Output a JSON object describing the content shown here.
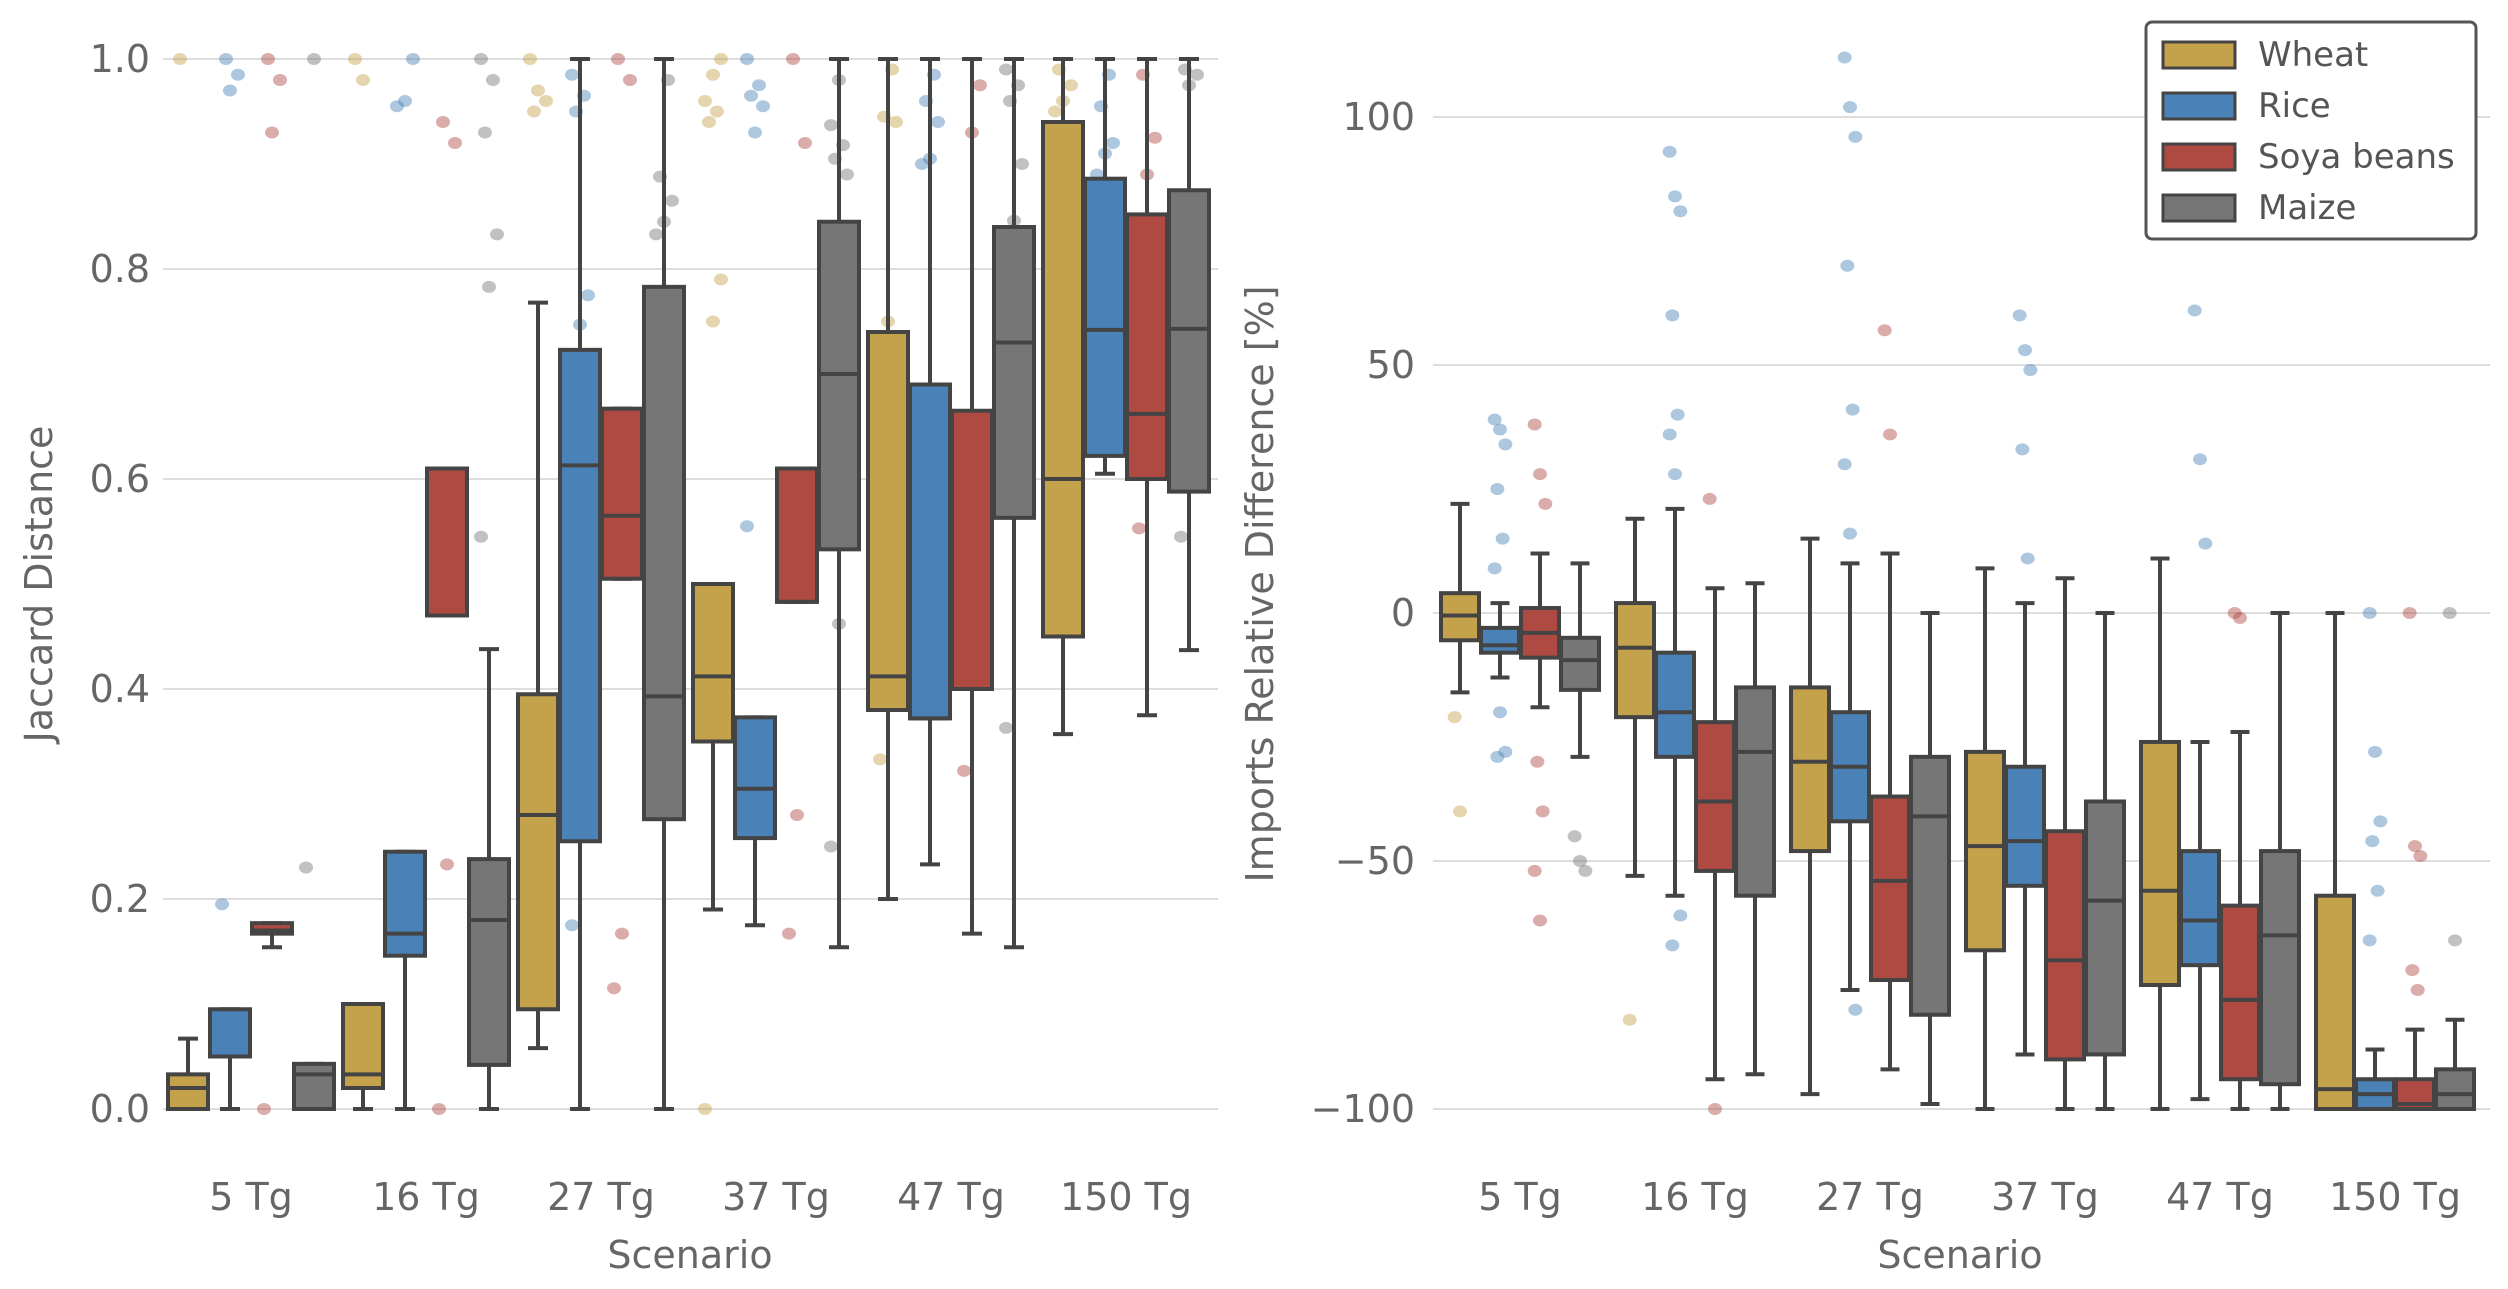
{
  "chart_data": [
    {
      "type": "box",
      "panel": "left",
      "title": "",
      "xlabel": "Scenario",
      "ylabel": "Jaccard Distance",
      "ylim": [
        0.0,
        1.0
      ],
      "yticks": [
        0.0,
        0.2,
        0.4,
        0.6,
        0.8,
        1.0
      ],
      "ytick_labels": [
        "0.0",
        "0.2",
        "0.4",
        "0.6",
        "0.8",
        "1.0"
      ],
      "grid": true,
      "categories": [
        "5 Tg",
        "16 Tg",
        "27 Tg",
        "37 Tg",
        "47 Tg",
        "150 Tg"
      ],
      "series": [
        {
          "name": "Wheat",
          "color": "#C4A24C",
          "boxes": [
            {
              "whislo": 0.0,
              "q1": 0.0,
              "med": 0.02,
              "q3": 0.033,
              "whishi": 0.067,
              "fliers": [
                1.0
              ]
            },
            {
              "whislo": 0.0,
              "q1": 0.02,
              "med": 0.033,
              "q3": 0.1,
              "whishi": 0.1,
              "fliers": [
                1.0,
                0.98
              ]
            },
            {
              "whislo": 0.058,
              "q1": 0.095,
              "med": 0.28,
              "q3": 0.395,
              "whishi": 0.768,
              "fliers": [
                1.0,
                0.97,
                0.96,
                0.95
              ]
            },
            {
              "whislo": 0.19,
              "q1": 0.35,
              "med": 0.412,
              "q3": 0.5,
              "whishi": 0.5,
              "fliers": [
                0.0,
                0.75,
                0.79,
                0.94,
                0.95,
                0.96,
                0.985,
                1.0
              ]
            },
            {
              "whislo": 0.2,
              "q1": 0.38,
              "med": 0.412,
              "q3": 0.74,
              "whishi": 1.0,
              "fliers": [
                0.333,
                0.75,
                0.94,
                0.945,
                0.99
              ]
            },
            {
              "whislo": 0.357,
              "q1": 0.45,
              "med": 0.6,
              "q3": 0.94,
              "whishi": 1.0,
              "fliers": [
                0.95,
                0.96,
                0.975,
                0.99
              ]
            }
          ]
        },
        {
          "name": "Rice",
          "color": "#4A82B8",
          "boxes": [
            {
              "whislo": 0.0,
              "q1": 0.05,
              "med": 0.05,
              "q3": 0.095,
              "whishi": 0.095,
              "fliers": [
                0.195,
                0.97,
                0.985,
                1.0
              ]
            },
            {
              "whislo": 0.0,
              "q1": 0.146,
              "med": 0.167,
              "q3": 0.245,
              "whishi": 0.245,
              "fliers": [
                0.955,
                0.96,
                1.0
              ]
            },
            {
              "whislo": 0.0,
              "q1": 0.255,
              "med": 0.613,
              "q3": 0.723,
              "whishi": 1.0,
              "fliers": [
                0.175,
                0.747,
                0.775,
                0.95,
                0.965,
                0.985
              ]
            },
            {
              "whislo": 0.175,
              "q1": 0.258,
              "med": 0.305,
              "q3": 0.373,
              "whishi": 0.373,
              "fliers": [
                0.555,
                0.93,
                0.955,
                0.965,
                0.975,
                1.0
              ]
            },
            {
              "whislo": 0.233,
              "q1": 0.372,
              "med": 0.372,
              "q3": 0.69,
              "whishi": 1.0,
              "fliers": [
                0.9,
                0.905,
                0.94,
                0.96,
                0.985
              ]
            },
            {
              "whislo": 0.605,
              "q1": 0.622,
              "med": 0.742,
              "q3": 0.886,
              "whishi": 1.0,
              "fliers": [
                0.89,
                0.91,
                0.92,
                0.955,
                0.985
              ]
            }
          ]
        },
        {
          "name": "Soya beans",
          "color": "#AE4A42",
          "boxes": [
            {
              "whislo": 0.154,
              "q1": 0.167,
              "med": 0.17,
              "q3": 0.177,
              "whishi": 0.177,
              "fliers": [
                0.0,
                0.93,
                0.98,
                1.0
              ]
            },
            {
              "whislo": 0.47,
              "q1": 0.47,
              "med": 0.47,
              "q3": 0.61,
              "whishi": 0.61,
              "fliers": [
                0.0,
                0.233,
                0.92,
                0.94
              ]
            },
            {
              "whislo": 0.505,
              "q1": 0.505,
              "med": 0.565,
              "q3": 0.667,
              "whishi": 0.667,
              "fliers": [
                0.115,
                0.167,
                0.98,
                1.0
              ]
            },
            {
              "whislo": 0.483,
              "q1": 0.483,
              "med": 0.483,
              "q3": 0.61,
              "whishi": 0.61,
              "fliers": [
                0.167,
                0.28,
                0.92,
                1.0
              ]
            },
            {
              "whislo": 0.167,
              "q1": 0.4,
              "med": 0.4,
              "q3": 0.665,
              "whishi": 1.0,
              "fliers": [
                0.322,
                0.93,
                0.975
              ]
            },
            {
              "whislo": 0.375,
              "q1": 0.6,
              "med": 0.662,
              "q3": 0.852,
              "whishi": 1.0,
              "fliers": [
                0.553,
                0.89,
                0.925,
                0.985
              ]
            }
          ]
        },
        {
          "name": "Maize",
          "color": "#767676",
          "boxes": [
            {
              "whislo": 0.0,
              "q1": 0.0,
              "med": 0.033,
              "q3": 0.043,
              "whishi": 0.043,
              "fliers": [
                0.23,
                1.0
              ]
            },
            {
              "whislo": 0.0,
              "q1": 0.042,
              "med": 0.18,
              "q3": 0.238,
              "whishi": 0.438,
              "fliers": [
                0.545,
                0.783,
                0.833,
                0.93,
                0.98,
                1.0
              ]
            },
            {
              "whislo": 0.0,
              "q1": 0.276,
              "med": 0.393,
              "q3": 0.783,
              "whishi": 1.0,
              "fliers": [
                0.833,
                0.845,
                0.865,
                0.888,
                0.98
              ]
            },
            {
              "whislo": 0.154,
              "q1": 0.533,
              "med": 0.7,
              "q3": 0.845,
              "whishi": 1.0,
              "fliers": [
                0.25,
                0.462,
                0.89,
                0.905,
                0.918,
                0.937,
                0.98
              ]
            },
            {
              "whislo": 0.154,
              "q1": 0.563,
              "med": 0.73,
              "q3": 0.84,
              "whishi": 1.0,
              "fliers": [
                0.363,
                0.846,
                0.9,
                0.96,
                0.975,
                0.99
              ]
            },
            {
              "whislo": 0.437,
              "q1": 0.588,
              "med": 0.743,
              "q3": 0.875,
              "whishi": 1.0,
              "fliers": [
                0.545,
                0.975,
                0.985,
                0.99
              ]
            }
          ]
        }
      ]
    },
    {
      "type": "box",
      "panel": "right",
      "title": "",
      "xlabel": "Scenario",
      "ylabel": "Imports Relative Difference [%]",
      "ylim": [
        -110,
        118
      ],
      "yticks": [
        -100,
        -50,
        0,
        50,
        100
      ],
      "ytick_labels": [
        "−100",
        "−50",
        "0",
        "50",
        "100"
      ],
      "grid": true,
      "legend": {
        "placement": "top-right",
        "entries": [
          "Wheat",
          "Rice",
          "Soya beans",
          "Maize"
        ]
      },
      "categories": [
        "5 Tg",
        "16 Tg",
        "27 Tg",
        "37 Tg",
        "47 Tg",
        "150 Tg"
      ],
      "series": [
        {
          "name": "Wheat",
          "color": "#C4A24C",
          "boxes": [
            {
              "whislo": -16,
              "q1": -5.5,
              "med": -0.5,
              "q3": 4,
              "whishi": 22,
              "fliers": [
                -21,
                -40
              ]
            },
            {
              "whislo": -53,
              "q1": -21,
              "med": -7,
              "q3": 2,
              "whishi": 19,
              "fliers": [
                -82
              ]
            },
            {
              "whislo": -97,
              "q1": -48,
              "med": -30,
              "q3": -15,
              "whishi": 15,
              "fliers": []
            },
            {
              "whislo": -100,
              "q1": -68,
              "med": -47,
              "q3": -28,
              "whishi": 9,
              "fliers": []
            },
            {
              "whislo": -100,
              "q1": -75,
              "med": -56,
              "q3": -26,
              "whishi": 11,
              "fliers": []
            },
            {
              "whislo": -100,
              "q1": -100,
              "med": -96,
              "q3": -57,
              "whishi": 0,
              "fliers": []
            }
          ]
        },
        {
          "name": "Rice",
          "color": "#4A82B8",
          "boxes": [
            {
              "whislo": -13,
              "q1": -8,
              "med": -6.5,
              "q3": -3,
              "whishi": 2,
              "fliers": [
                39,
                37,
                34,
                25,
                15,
                9,
                -20,
                -28,
                -29
              ]
            },
            {
              "whislo": -57,
              "q1": -29,
              "med": -20,
              "q3": -8,
              "whishi": 21,
              "fliers": [
                93,
                84,
                81,
                60,
                40,
                36,
                28,
                -61,
                -67
              ]
            },
            {
              "whislo": -76,
              "q1": -42,
              "med": -31,
              "q3": -20,
              "whishi": 10,
              "fliers": [
                112,
                102,
                96,
                70,
                41,
                30,
                16,
                -80
              ]
            },
            {
              "whislo": -89,
              "q1": -55,
              "med": -46,
              "q3": -31,
              "whishi": 2,
              "fliers": [
                60,
                53,
                49,
                33,
                11
              ]
            },
            {
              "whislo": -98,
              "q1": -71,
              "med": -62,
              "q3": -48,
              "whishi": -26,
              "fliers": [
                61,
                31,
                14
              ]
            },
            {
              "whislo": -100,
              "q1": -100,
              "med": -97,
              "q3": -94,
              "whishi": -88,
              "fliers": [
                0,
                -28,
                -42,
                -46,
                -56,
                -66
              ]
            }
          ]
        },
        {
          "name": "Soya beans",
          "color": "#AE4A42",
          "boxes": [
            {
              "whislo": -19,
              "q1": -9,
              "med": -4,
              "q3": 1,
              "whishi": 12,
              "fliers": [
                38,
                28,
                22,
                -30,
                -40,
                -52,
                -62
              ]
            },
            {
              "whislo": -94,
              "q1": -52,
              "med": -38,
              "q3": -22,
              "whishi": 5,
              "fliers": [
                23,
                -100
              ]
            },
            {
              "whislo": -92,
              "q1": -74,
              "med": -54,
              "q3": -37,
              "whishi": 12,
              "fliers": [
                57,
                36
              ]
            },
            {
              "whislo": -100,
              "q1": -90,
              "med": -70,
              "q3": -44,
              "whishi": 7,
              "fliers": []
            },
            {
              "whislo": -100,
              "q1": -94,
              "med": -78,
              "q3": -59,
              "whishi": -24,
              "fliers": [
                0,
                -1
              ]
            },
            {
              "whislo": -100,
              "q1": -100,
              "med": -99,
              "q3": -94,
              "whishi": -84,
              "fliers": [
                0,
                -47,
                -49,
                -72,
                -76
              ]
            }
          ]
        },
        {
          "name": "Maize",
          "color": "#767676",
          "boxes": [
            {
              "whislo": -29,
              "q1": -15.5,
              "med": -9.5,
              "q3": -5,
              "whishi": 10,
              "fliers": [
                -45,
                -50,
                -52
              ]
            },
            {
              "whislo": -93,
              "q1": -57,
              "med": -28,
              "q3": -15,
              "whishi": 6,
              "fliers": []
            },
            {
              "whislo": -99,
              "q1": -81,
              "med": -41,
              "q3": -29,
              "whishi": 0,
              "fliers": []
            },
            {
              "whislo": -100,
              "q1": -89,
              "med": -58,
              "q3": -38,
              "whishi": 0,
              "fliers": []
            },
            {
              "whislo": -100,
              "q1": -95,
              "med": -65,
              "q3": -48,
              "whishi": 0,
              "fliers": []
            },
            {
              "whislo": -100,
              "q1": -100,
              "med": -97,
              "q3": -92,
              "whishi": -82,
              "fliers": [
                0,
                -66
              ]
            }
          ]
        }
      ]
    }
  ]
}
